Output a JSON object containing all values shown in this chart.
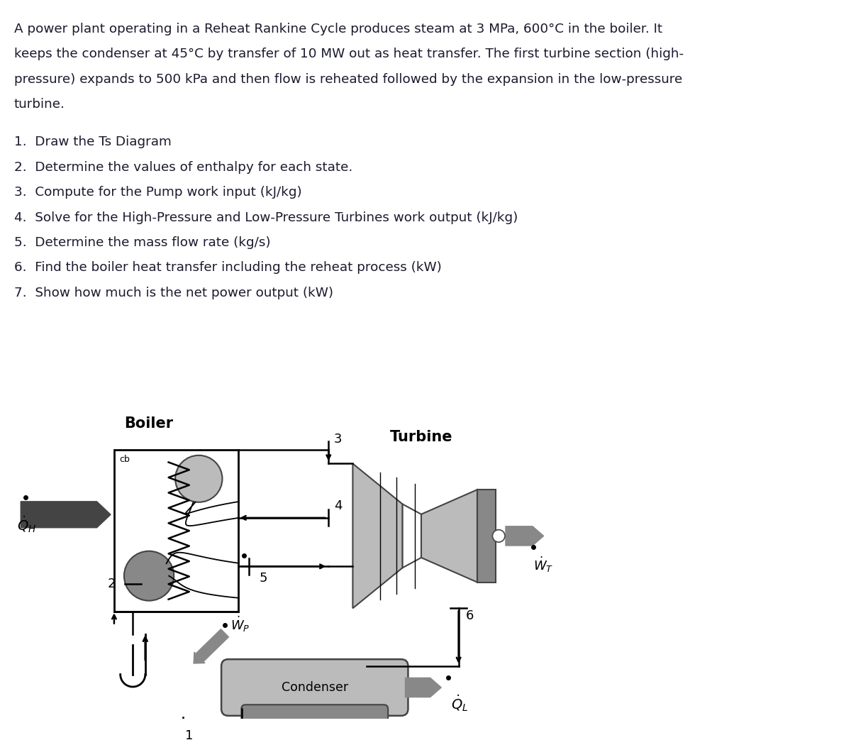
{
  "bg_color": "#ffffff",
  "text_color": "#1a1a2e",
  "para_lines": [
    "A power plant operating in a Reheat Rankine Cycle produces steam at 3 MPa, 600°C in the boiler. It",
    "keeps the condenser at 45°C by transfer of 10 MW out as heat transfer. The first turbine section (high-",
    "pressure) expands to 500 kPa and then flow is reheated followed by the expansion in the low-pressure",
    "turbine."
  ],
  "items": [
    "1.  Draw the Ts Diagram",
    "2.  Determine the values of enthalpy for each state.",
    "3.  Compute for the Pump work input (kJ/kg)",
    "4.  Solve for the High-Pressure and Low-Pressure Turbines work output (kJ/kg)",
    "5.  Determine the mass flow rate (kg/s)",
    "6.  Find the boiler heat transfer including the reheat process (kW)",
    "7.  Show how much is the net power output (kW)"
  ],
  "diagram_title_boiler": "Boiler",
  "diagram_title_turbine": "Turbine",
  "label_cb": "cb",
  "label_QH": "$\\dot{Q}_H$",
  "label_WT": "$\\dot{W}_T$",
  "label_WP": "$\\dot{W}_P$",
  "label_QL": "$\\dot{Q}_L$",
  "label_condenser": "Condenser",
  "gray_dark": "#444444",
  "gray_mid": "#888888",
  "gray_light": "#bbbbbb",
  "black": "#000000",
  "white": "#ffffff"
}
